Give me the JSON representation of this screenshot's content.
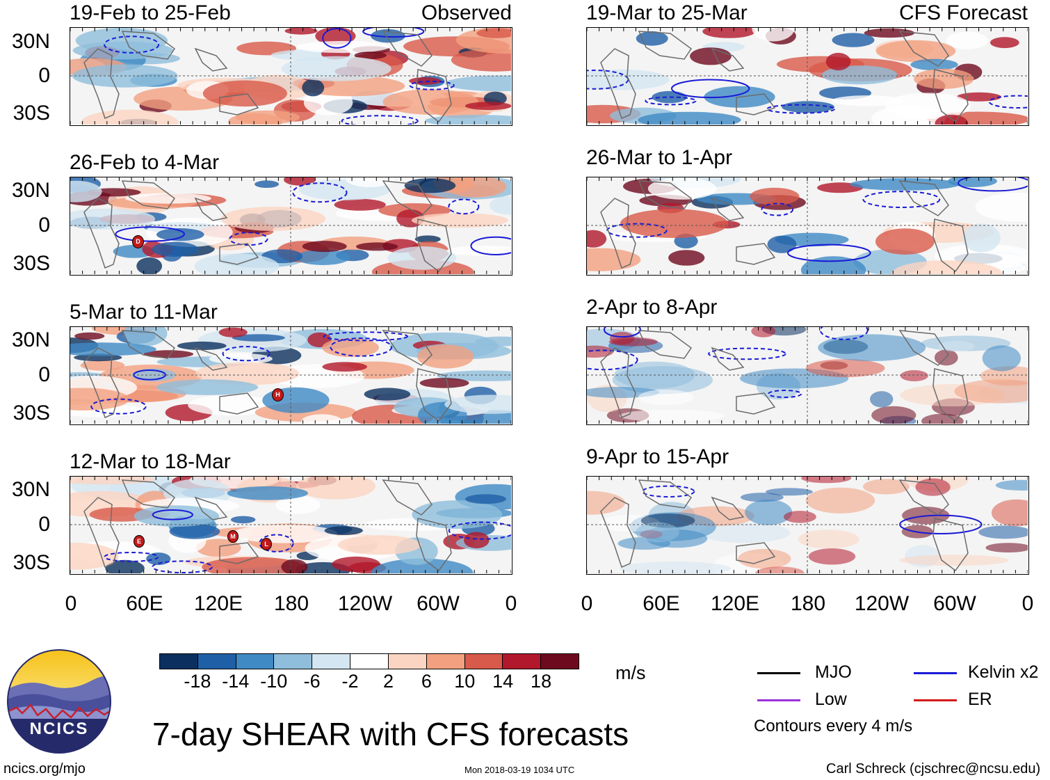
{
  "observed_tag": "Observed",
  "forecast_tag": "CFS Forecast",
  "lat_labels": [
    "30N",
    "0",
    "30S"
  ],
  "lon_labels": [
    "0",
    "60E",
    "120E",
    "180",
    "120W",
    "60W",
    "0"
  ],
  "panels_left": [
    {
      "title": "19-Feb to 25-Feb",
      "storms": []
    },
    {
      "title": "26-Feb to 4-Mar",
      "storms": [
        "D"
      ]
    },
    {
      "title": "5-Mar to 11-Mar",
      "storms": [
        "H"
      ]
    },
    {
      "title": "12-Mar to 18-Mar",
      "storms": [
        "E",
        "M",
        "L"
      ]
    }
  ],
  "panels_right": [
    {
      "title": "19-Mar to 25-Mar"
    },
    {
      "title": "26-Mar to 1-Apr"
    },
    {
      "title": "2-Apr to 8-Apr"
    },
    {
      "title": "9-Apr to 15-Apr"
    }
  ],
  "colorbar": {
    "labels": [
      "-18",
      "-14",
      "-10",
      "-6",
      "-2",
      "2",
      "6",
      "10",
      "14",
      "18"
    ],
    "colors": [
      "#0b2f5e",
      "#1f5fa6",
      "#3f8ac4",
      "#8fbedc",
      "#d3e6f1",
      "#ffffff",
      "#fbd5c2",
      "#f2a07f",
      "#d85a4a",
      "#b2182b",
      "#6e0a1e"
    ],
    "unit": "m/s"
  },
  "legend": {
    "mjo": "MJO",
    "kelvin": "Kelvin x2",
    "low": "Low",
    "er": "ER",
    "note": "Contours every 4 m/s",
    "colors": {
      "mjo": "#000000",
      "kelvin": "#1a1ad6",
      "low": "#9b30d9",
      "er": "#d41a1a"
    }
  },
  "main_title": "7-day SHEAR with CFS forecasts",
  "logo_text": "NCICS",
  "site": "ncics.org/mjo",
  "timestamp": "Mon 2018-03-19 1034 UTC",
  "credit": "Carl Schreck (cjschrec@ncsu.edu)"
}
